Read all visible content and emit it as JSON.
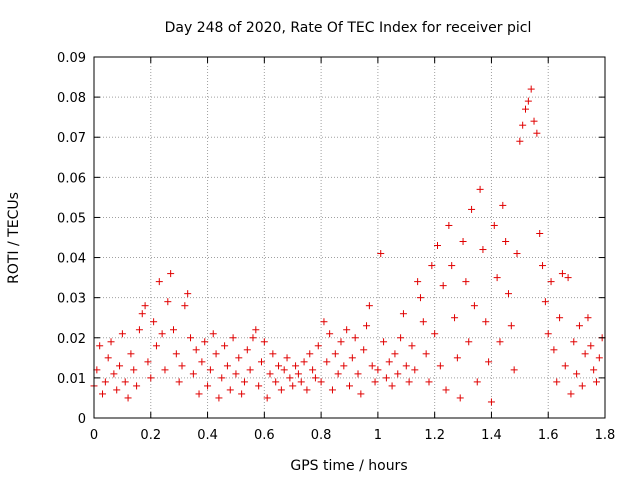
{
  "chart_data": {
    "type": "scatter",
    "title": "Day 248 of 2020, Rate Of TEC Index for receiver picl",
    "xlabel": "GPS time / hours",
    "ylabel": "ROTI / TECUs",
    "xlim": [
      0,
      1.8
    ],
    "ylim": [
      0,
      0.09
    ],
    "xticks": [
      "0",
      "0.2",
      "0.4",
      "0.6",
      "0.8",
      "1",
      "1.2",
      "1.4",
      "1.6",
      "1.8"
    ],
    "yticks": [
      "0",
      "0.01",
      "0.02",
      "0.03",
      "0.04",
      "0.05",
      "0.06",
      "0.07",
      "0.08",
      "0.09"
    ],
    "grid": true,
    "marker": "+",
    "color": "#e00000",
    "series": [
      {
        "points": [
          [
            0.0,
            0.008
          ],
          [
            0.01,
            0.012
          ],
          [
            0.02,
            0.018
          ],
          [
            0.03,
            0.006
          ],
          [
            0.04,
            0.009
          ],
          [
            0.05,
            0.015
          ],
          [
            0.06,
            0.019
          ],
          [
            0.07,
            0.011
          ],
          [
            0.08,
            0.007
          ],
          [
            0.09,
            0.013
          ],
          [
            0.1,
            0.021
          ],
          [
            0.11,
            0.009
          ],
          [
            0.12,
            0.005
          ],
          [
            0.13,
            0.016
          ],
          [
            0.14,
            0.012
          ],
          [
            0.15,
            0.008
          ],
          [
            0.16,
            0.022
          ],
          [
            0.17,
            0.026
          ],
          [
            0.18,
            0.028
          ],
          [
            0.19,
            0.014
          ],
          [
            0.2,
            0.01
          ],
          [
            0.21,
            0.024
          ],
          [
            0.22,
            0.018
          ],
          [
            0.23,
            0.034
          ],
          [
            0.24,
            0.021
          ],
          [
            0.25,
            0.012
          ],
          [
            0.26,
            0.029
          ],
          [
            0.27,
            0.036
          ],
          [
            0.28,
            0.022
          ],
          [
            0.29,
            0.016
          ],
          [
            0.3,
            0.009
          ],
          [
            0.31,
            0.013
          ],
          [
            0.32,
            0.028
          ],
          [
            0.33,
            0.031
          ],
          [
            0.34,
            0.02
          ],
          [
            0.35,
            0.011
          ],
          [
            0.36,
            0.017
          ],
          [
            0.37,
            0.006
          ],
          [
            0.38,
            0.014
          ],
          [
            0.39,
            0.019
          ],
          [
            0.4,
            0.008
          ],
          [
            0.41,
            0.012
          ],
          [
            0.42,
            0.021
          ],
          [
            0.43,
            0.016
          ],
          [
            0.44,
            0.005
          ],
          [
            0.45,
            0.01
          ],
          [
            0.46,
            0.018
          ],
          [
            0.47,
            0.013
          ],
          [
            0.48,
            0.007
          ],
          [
            0.49,
            0.02
          ],
          [
            0.5,
            0.011
          ],
          [
            0.51,
            0.015
          ],
          [
            0.52,
            0.006
          ],
          [
            0.53,
            0.009
          ],
          [
            0.54,
            0.017
          ],
          [
            0.55,
            0.012
          ],
          [
            0.56,
            0.02
          ],
          [
            0.57,
            0.022
          ],
          [
            0.58,
            0.008
          ],
          [
            0.59,
            0.014
          ],
          [
            0.6,
            0.019
          ],
          [
            0.61,
            0.005
          ],
          [
            0.62,
            0.011
          ],
          [
            0.63,
            0.016
          ],
          [
            0.64,
            0.009
          ],
          [
            0.65,
            0.013
          ],
          [
            0.66,
            0.007
          ],
          [
            0.67,
            0.012
          ],
          [
            0.68,
            0.015
          ],
          [
            0.69,
            0.01
          ],
          [
            0.7,
            0.008
          ],
          [
            0.71,
            0.013
          ],
          [
            0.72,
            0.011
          ],
          [
            0.73,
            0.009
          ],
          [
            0.74,
            0.014
          ],
          [
            0.75,
            0.007
          ],
          [
            0.76,
            0.016
          ],
          [
            0.77,
            0.012
          ],
          [
            0.78,
            0.01
          ],
          [
            0.79,
            0.018
          ],
          [
            0.8,
            0.009
          ],
          [
            0.81,
            0.024
          ],
          [
            0.82,
            0.014
          ],
          [
            0.83,
            0.021
          ],
          [
            0.84,
            0.007
          ],
          [
            0.85,
            0.016
          ],
          [
            0.86,
            0.011
          ],
          [
            0.87,
            0.019
          ],
          [
            0.88,
            0.013
          ],
          [
            0.89,
            0.022
          ],
          [
            0.9,
            0.008
          ],
          [
            0.91,
            0.015
          ],
          [
            0.92,
            0.02
          ],
          [
            0.93,
            0.011
          ],
          [
            0.94,
            0.006
          ],
          [
            0.95,
            0.017
          ],
          [
            0.96,
            0.023
          ],
          [
            0.97,
            0.028
          ],
          [
            0.98,
            0.013
          ],
          [
            0.99,
            0.009
          ],
          [
            1.0,
            0.012
          ],
          [
            1.01,
            0.041
          ],
          [
            1.02,
            0.019
          ],
          [
            1.03,
            0.01
          ],
          [
            1.04,
            0.014
          ],
          [
            1.05,
            0.008
          ],
          [
            1.06,
            0.016
          ],
          [
            1.07,
            0.011
          ],
          [
            1.08,
            0.02
          ],
          [
            1.09,
            0.026
          ],
          [
            1.1,
            0.013
          ],
          [
            1.11,
            0.009
          ],
          [
            1.12,
            0.018
          ],
          [
            1.13,
            0.012
          ],
          [
            1.14,
            0.034
          ],
          [
            1.15,
            0.03
          ],
          [
            1.16,
            0.024
          ],
          [
            1.17,
            0.016
          ],
          [
            1.18,
            0.009
          ],
          [
            1.19,
            0.038
          ],
          [
            1.2,
            0.021
          ],
          [
            1.21,
            0.043
          ],
          [
            1.22,
            0.013
          ],
          [
            1.23,
            0.033
          ],
          [
            1.24,
            0.007
          ],
          [
            1.25,
            0.048
          ],
          [
            1.26,
            0.038
          ],
          [
            1.27,
            0.025
          ],
          [
            1.28,
            0.015
          ],
          [
            1.29,
            0.005
          ],
          [
            1.3,
            0.044
          ],
          [
            1.31,
            0.034
          ],
          [
            1.32,
            0.019
          ],
          [
            1.33,
            0.052
          ],
          [
            1.34,
            0.028
          ],
          [
            1.35,
            0.009
          ],
          [
            1.36,
            0.057
          ],
          [
            1.37,
            0.042
          ],
          [
            1.38,
            0.024
          ],
          [
            1.39,
            0.014
          ],
          [
            1.4,
            0.004
          ],
          [
            1.41,
            0.048
          ],
          [
            1.42,
            0.035
          ],
          [
            1.43,
            0.019
          ],
          [
            1.44,
            0.053
          ],
          [
            1.45,
            0.044
          ],
          [
            1.46,
            0.031
          ],
          [
            1.47,
            0.023
          ],
          [
            1.48,
            0.012
          ],
          [
            1.49,
            0.041
          ],
          [
            1.5,
            0.069
          ],
          [
            1.51,
            0.073
          ],
          [
            1.52,
            0.077
          ],
          [
            1.53,
            0.079
          ],
          [
            1.54,
            0.082
          ],
          [
            1.55,
            0.074
          ],
          [
            1.56,
            0.071
          ],
          [
            1.57,
            0.046
          ],
          [
            1.58,
            0.038
          ],
          [
            1.59,
            0.029
          ],
          [
            1.6,
            0.021
          ],
          [
            1.61,
            0.034
          ],
          [
            1.62,
            0.017
          ],
          [
            1.63,
            0.009
          ],
          [
            1.64,
            0.025
          ],
          [
            1.65,
            0.036
          ],
          [
            1.66,
            0.013
          ],
          [
            1.67,
            0.035
          ],
          [
            1.68,
            0.006
          ],
          [
            1.69,
            0.019
          ],
          [
            1.7,
            0.011
          ],
          [
            1.71,
            0.023
          ],
          [
            1.72,
            0.008
          ],
          [
            1.73,
            0.016
          ],
          [
            1.74,
            0.025
          ],
          [
            1.75,
            0.018
          ],
          [
            1.76,
            0.012
          ],
          [
            1.77,
            0.009
          ],
          [
            1.78,
            0.015
          ],
          [
            1.79,
            0.02
          ]
        ]
      }
    ]
  }
}
